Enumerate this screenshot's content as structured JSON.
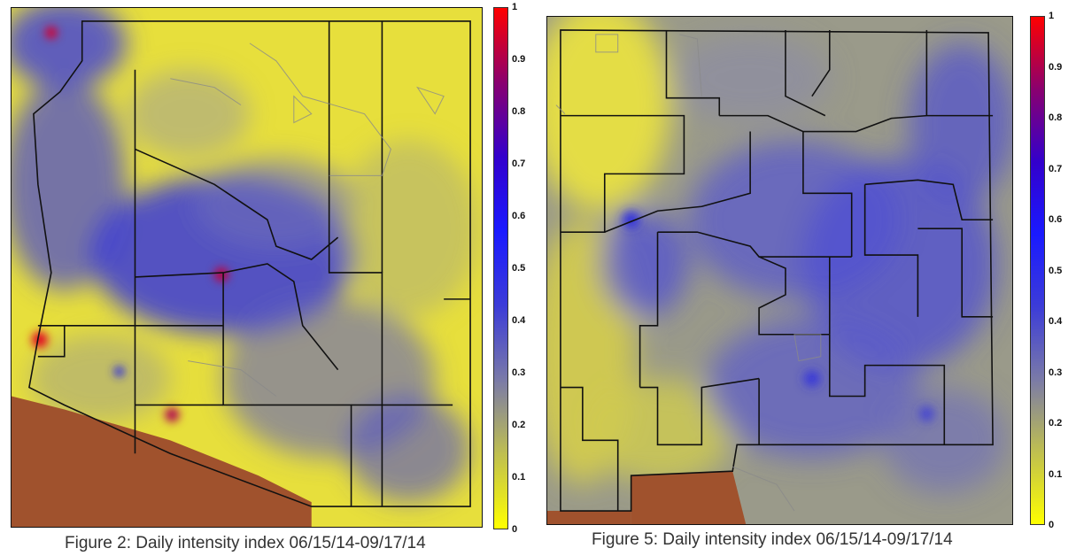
{
  "figures": [
    {
      "caption": "Figure 2: Daily intensity index 06/15/14-09/17/14"
    },
    {
      "caption": "Figure 5: Daily intensity index 06/15/14-09/17/14"
    }
  ],
  "colorbar": {
    "ticks": [
      "1",
      "0.9",
      "0.8",
      "0.7",
      "0.6",
      "0.5",
      "0.4",
      "0.3",
      "0.2",
      "0.1",
      "0"
    ],
    "colors": [
      "#ff0000",
      "#8a006f",
      "#3300cc",
      "#1a1aff",
      "#3c3cd8",
      "#7a7aa8",
      "#bfbf50",
      "#ffff00"
    ]
  }
}
